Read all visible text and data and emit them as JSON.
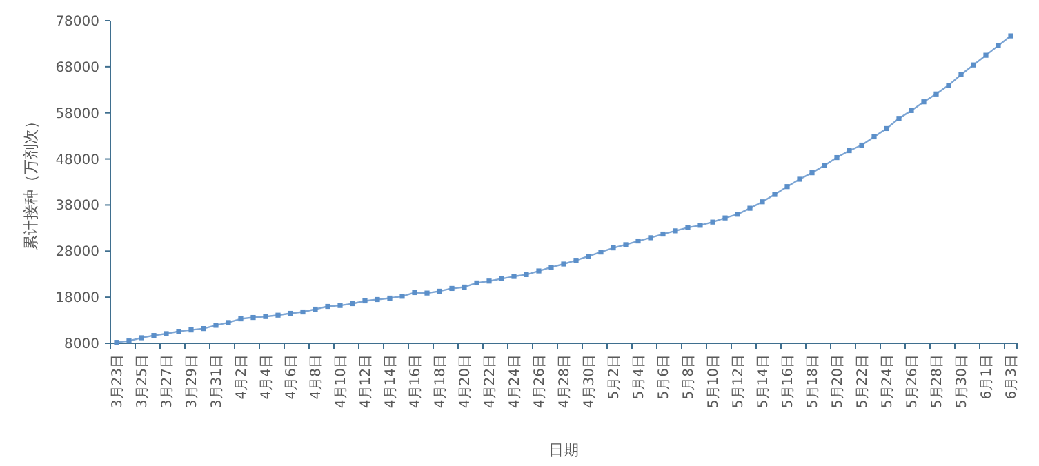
{
  "chart_data": {
    "type": "line",
    "xlabel": "日期",
    "ylabel": "累计接种（万剂次）",
    "categories": [
      "3月23日",
      null,
      "3月25日",
      null,
      "3月27日",
      null,
      "3月29日",
      null,
      "3月31日",
      null,
      "4月2日",
      null,
      "4月4日",
      null,
      "4月6日",
      null,
      "4月8日",
      null,
      "4月10日",
      null,
      "4月12日",
      null,
      "4月14日",
      null,
      "4月16日",
      null,
      "4月18日",
      null,
      "4月20日",
      null,
      "4月22日",
      null,
      "4月24日",
      null,
      "4月26日",
      null,
      "4月28日",
      null,
      "4月30日",
      null,
      "5月2日",
      null,
      "5月4日",
      null,
      "5月6日",
      null,
      "5月8日",
      null,
      "5月10日",
      null,
      "5月12日",
      null,
      "5月14日",
      null,
      "5月16日",
      null,
      "5月18日",
      null,
      "5月20日",
      null,
      "5月22日",
      null,
      "5月24日",
      null,
      "5月26日",
      null,
      "5月28日",
      null,
      "5月30日",
      null,
      "6月1日",
      null,
      "6月3日"
    ],
    "series": [
      {
        "color": "#5b8fc9",
        "values": [
          8200,
          8500,
          9200,
          9700,
          10100,
          10600,
          10900,
          11200,
          11900,
          12500,
          13300,
          13600,
          13800,
          14100,
          14500,
          14800,
          15400,
          16000,
          16200,
          16600,
          17200,
          17500,
          17800,
          18200,
          19000,
          18900,
          19300,
          19900,
          20200,
          21100,
          21500,
          22000,
          22500,
          22900,
          23700,
          24500,
          25200,
          26000,
          26900,
          27800,
          28700,
          29400,
          30200,
          30900,
          31700,
          32400,
          33100,
          33600,
          34300,
          35200,
          36000,
          37300,
          38700,
          40300,
          42000,
          43600,
          45000,
          46600,
          48300,
          49800,
          51000,
          52800,
          54600,
          56800,
          58500,
          60400,
          62100,
          64000,
          66300,
          68400,
          70500,
          72600,
          74700
        ]
      }
    ],
    "ylim": [
      8000,
      78000
    ],
    "yticks": [
      8000,
      18000,
      28000,
      38000,
      48000,
      58000,
      68000,
      78000
    ],
    "grid": false,
    "marker": "square",
    "line_style": "solid"
  }
}
